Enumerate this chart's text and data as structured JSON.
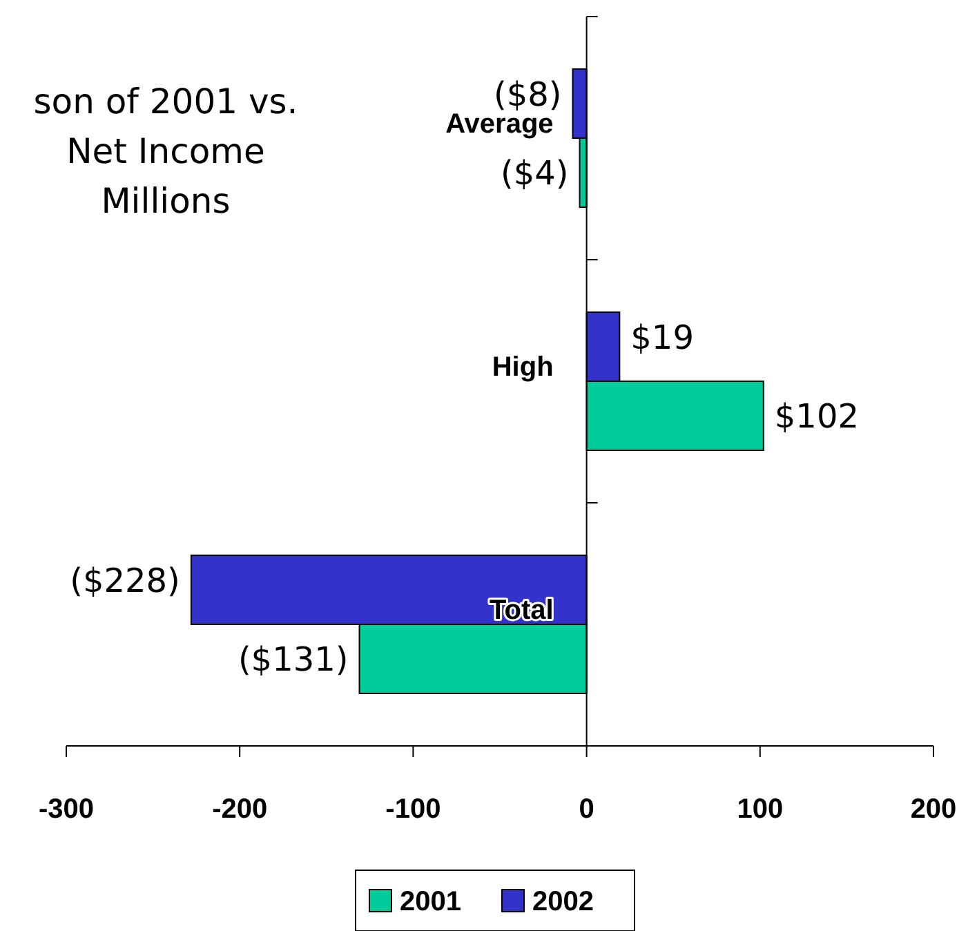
{
  "chart_data": {
    "type": "bar",
    "orientation": "horizontal",
    "title": "son of 2001 vs.\nNet Income\nMillions",
    "categories": [
      "Average",
      "High",
      "Total"
    ],
    "series": [
      {
        "name": "2001",
        "color": "#00cc99",
        "values": [
          -4,
          102,
          -131
        ],
        "value_labels": [
          "($4)",
          "$102",
          "($131)"
        ]
      },
      {
        "name": "2002",
        "color": "#3333cc",
        "values": [
          -8,
          19,
          -228
        ],
        "value_labels": [
          "($8)",
          "$19",
          "($228)"
        ]
      }
    ],
    "xlim": [
      -300,
      200
    ],
    "xticks": [
      -300,
      -200,
      -100,
      0,
      100,
      200
    ],
    "legend": "bottom"
  }
}
